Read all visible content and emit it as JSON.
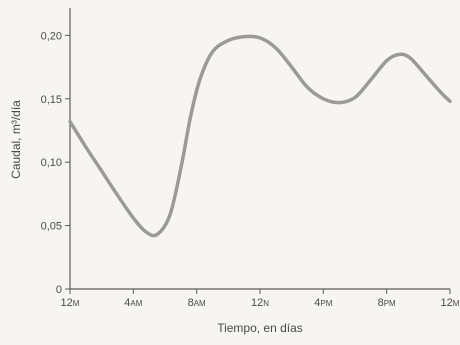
{
  "chart_data": {
    "type": "line",
    "title": "",
    "xlabel": "Tiempo, en días",
    "ylabel": "Caudal, m³/día",
    "ylim": [
      0,
      0.22
    ],
    "xlim": [
      0,
      24
    ],
    "yticks": [
      {
        "value": 0,
        "label": "0"
      },
      {
        "value": 0.05,
        "label": "0,05"
      },
      {
        "value": 0.1,
        "label": "0,10"
      },
      {
        "value": 0.15,
        "label": "0,15"
      },
      {
        "value": 0.2,
        "label": "0,20"
      }
    ],
    "xticks": [
      {
        "hour": 0,
        "num": "12",
        "suffix": "M"
      },
      {
        "hour": 4,
        "num": "4",
        "suffix": "AM"
      },
      {
        "hour": 8,
        "num": "8",
        "suffix": "AM"
      },
      {
        "hour": 12,
        "num": "12",
        "suffix": "N"
      },
      {
        "hour": 16,
        "num": "4",
        "suffix": "PM"
      },
      {
        "hour": 20,
        "num": "8",
        "suffix": "PM"
      },
      {
        "hour": 24,
        "num": "12",
        "suffix": "M"
      }
    ],
    "grid": false,
    "line_color": "#9a9a9a",
    "series": [
      {
        "x": [
          0,
          1,
          2,
          3,
          4,
          4.8,
          5.5,
          6.3,
          7,
          7.6,
          8.2,
          9,
          10,
          11,
          12,
          13,
          14,
          15,
          16,
          17,
          18,
          19,
          20,
          20.8,
          21.5,
          22.5,
          23.5,
          24
        ],
        "y": [
          0.132,
          0.112,
          0.093,
          0.074,
          0.056,
          0.045,
          0.043,
          0.058,
          0.095,
          0.135,
          0.165,
          0.187,
          0.196,
          0.199,
          0.198,
          0.19,
          0.175,
          0.159,
          0.15,
          0.147,
          0.151,
          0.165,
          0.18,
          0.185,
          0.182,
          0.168,
          0.154,
          0.148
        ]
      }
    ]
  }
}
